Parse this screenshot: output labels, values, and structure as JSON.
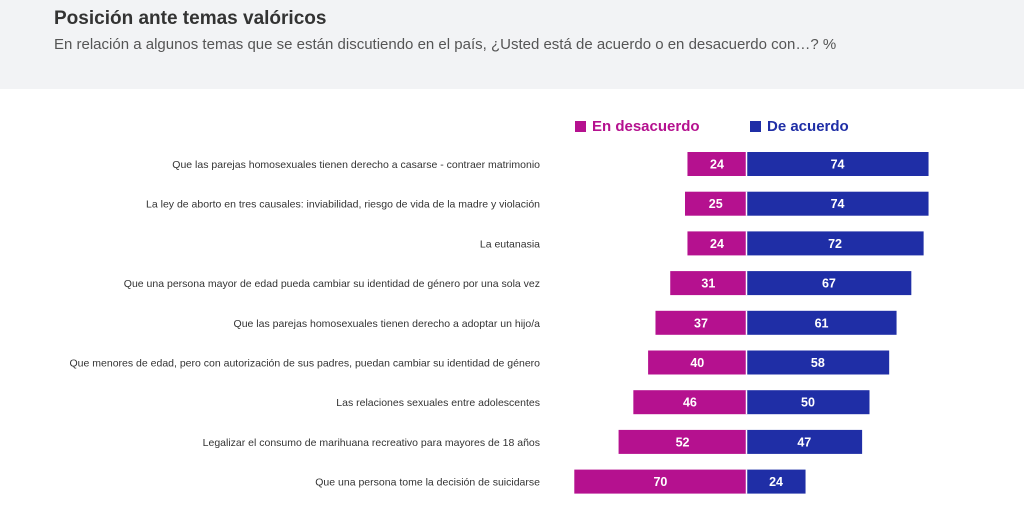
{
  "chart_data": {
    "type": "bar",
    "title": "Posición ante temas valóricos",
    "subtitle": "En relación a algunos temas que se están discutiendo en el país, ¿Usted está de acuerdo o en desacuerdo con…? %",
    "categories": [
      "Que las parejas homosexuales tienen derecho a casarse - contraer matrimonio",
      "La ley de aborto en tres causales: inviabilidad, riesgo de vida de la madre y violación",
      "La eutanasia",
      "Que una persona mayor de edad pueda cambiar su identidad de género por una sola vez",
      "Que las parejas homosexuales tienen derecho a adoptar un hijo/a",
      "Que menores de edad, pero con autorización de sus padres, puedan cambiar su identidad de género",
      "Las relaciones sexuales entre adolescentes",
      "Legalizar el consumo de marihuana recreativo para mayores de 18 años",
      "Que una persona tome la decisión de suicidarse"
    ],
    "series": [
      {
        "name": "En desacuerdo",
        "color": "#b5118f",
        "values": [
          24,
          25,
          24,
          31,
          37,
          40,
          46,
          52,
          70
        ]
      },
      {
        "name": "De acuerdo",
        "color": "#1f2ea6",
        "values": [
          74,
          74,
          72,
          67,
          61,
          58,
          50,
          47,
          24
        ]
      }
    ],
    "orientation": "horizontal-diverging",
    "legend": "top-right"
  }
}
